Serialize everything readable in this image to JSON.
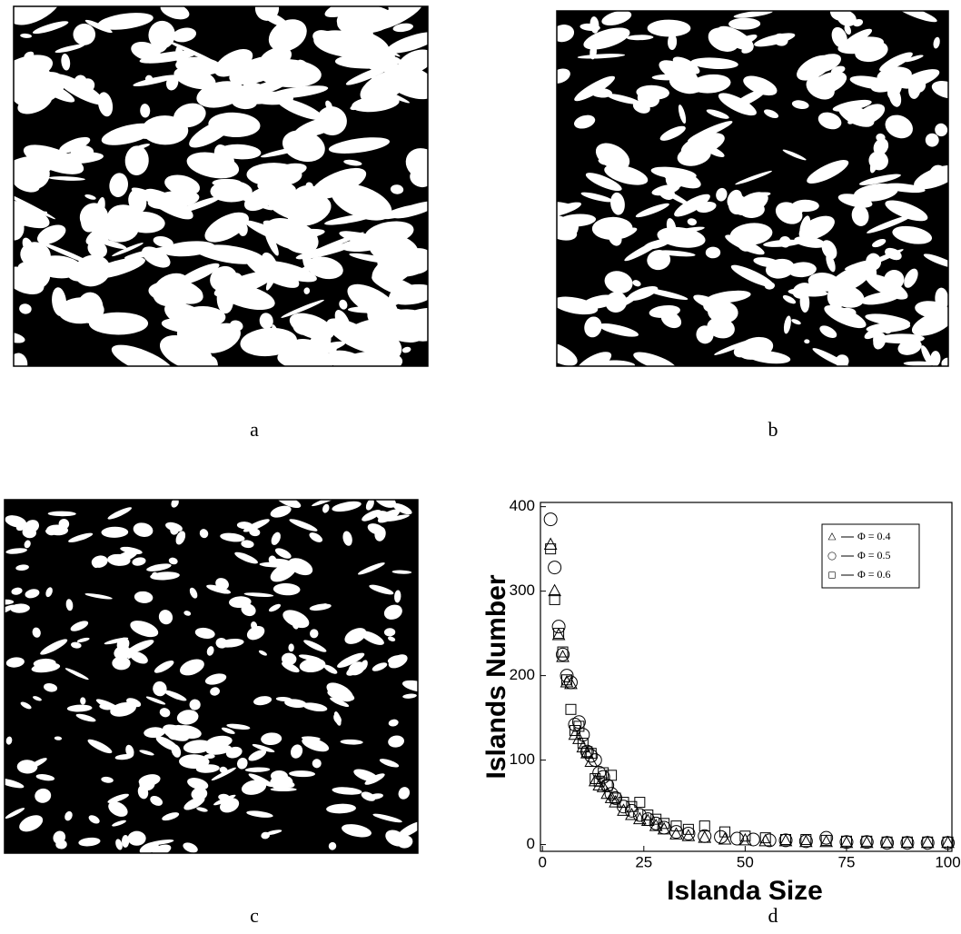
{
  "panels": [
    "a",
    "b",
    "c",
    "d"
  ],
  "chart_data": {
    "type": "scatter",
    "xlabel": "Islanda Size",
    "ylabel": "Islands Number",
    "xlim": [
      -0.5,
      101
    ],
    "ylim": [
      -8,
      405
    ],
    "xticks": [
      0,
      25,
      50,
      75,
      100
    ],
    "yticks": [
      0,
      100,
      200,
      300,
      400
    ],
    "series": [
      {
        "name": "Φ = 0.4",
        "marker": "triangle",
        "color": "#000000",
        "x": [
          2,
          3,
          4,
          5,
          6,
          7,
          8,
          9,
          10,
          11,
          12,
          13,
          14,
          15,
          16,
          17,
          18,
          20,
          22,
          24,
          26,
          28,
          30,
          33,
          36,
          40,
          45,
          50,
          55,
          60,
          65,
          70,
          75,
          80,
          85,
          90,
          95,
          100
        ],
        "values": [
          355,
          300,
          248,
          222,
          192,
          190,
          130,
          125,
          115,
          108,
          98,
          75,
          70,
          68,
          60,
          55,
          50,
          40,
          35,
          30,
          28,
          22,
          18,
          12,
          10,
          8,
          6,
          5,
          4,
          4,
          3,
          3,
          2,
          2,
          2,
          2,
          2,
          2
        ]
      },
      {
        "name": "Φ = 0.5",
        "marker": "circle",
        "color": "#000000",
        "x": [
          2,
          3,
          4,
          5,
          6,
          7,
          8,
          9,
          10,
          11,
          12,
          13,
          14,
          15,
          16,
          17,
          18,
          20,
          22,
          24,
          26,
          28,
          30,
          33,
          36,
          40,
          44,
          48,
          52,
          56,
          60,
          65,
          70,
          75,
          80,
          85,
          90,
          95,
          100
        ],
        "values": [
          385,
          328,
          258,
          225,
          200,
          192,
          142,
          145,
          130,
          110,
          105,
          100,
          85,
          80,
          70,
          60,
          55,
          45,
          40,
          35,
          30,
          25,
          20,
          15,
          13,
          10,
          9,
          7,
          6,
          5,
          5,
          4,
          8,
          3,
          3,
          2,
          2,
          2,
          2
        ]
      },
      {
        "name": "Φ = 0.6",
        "marker": "square",
        "color": "#000000",
        "x": [
          2,
          3,
          4,
          5,
          6,
          7,
          8,
          9,
          10,
          11,
          12,
          13,
          14,
          15,
          16,
          17,
          18,
          20,
          22,
          24,
          26,
          28,
          30,
          33,
          36,
          40,
          45,
          50,
          55,
          60,
          65,
          70,
          75,
          80,
          85,
          90,
          95,
          100
        ],
        "values": [
          350,
          290,
          250,
          228,
          195,
          160,
          135,
          140,
          120,
          110,
          108,
          78,
          75,
          85,
          70,
          82,
          55,
          50,
          45,
          50,
          35,
          30,
          25,
          22,
          18,
          22,
          15,
          10,
          8,
          6,
          6,
          5,
          4,
          4,
          3,
          3,
          3,
          3
        ]
      }
    ]
  }
}
